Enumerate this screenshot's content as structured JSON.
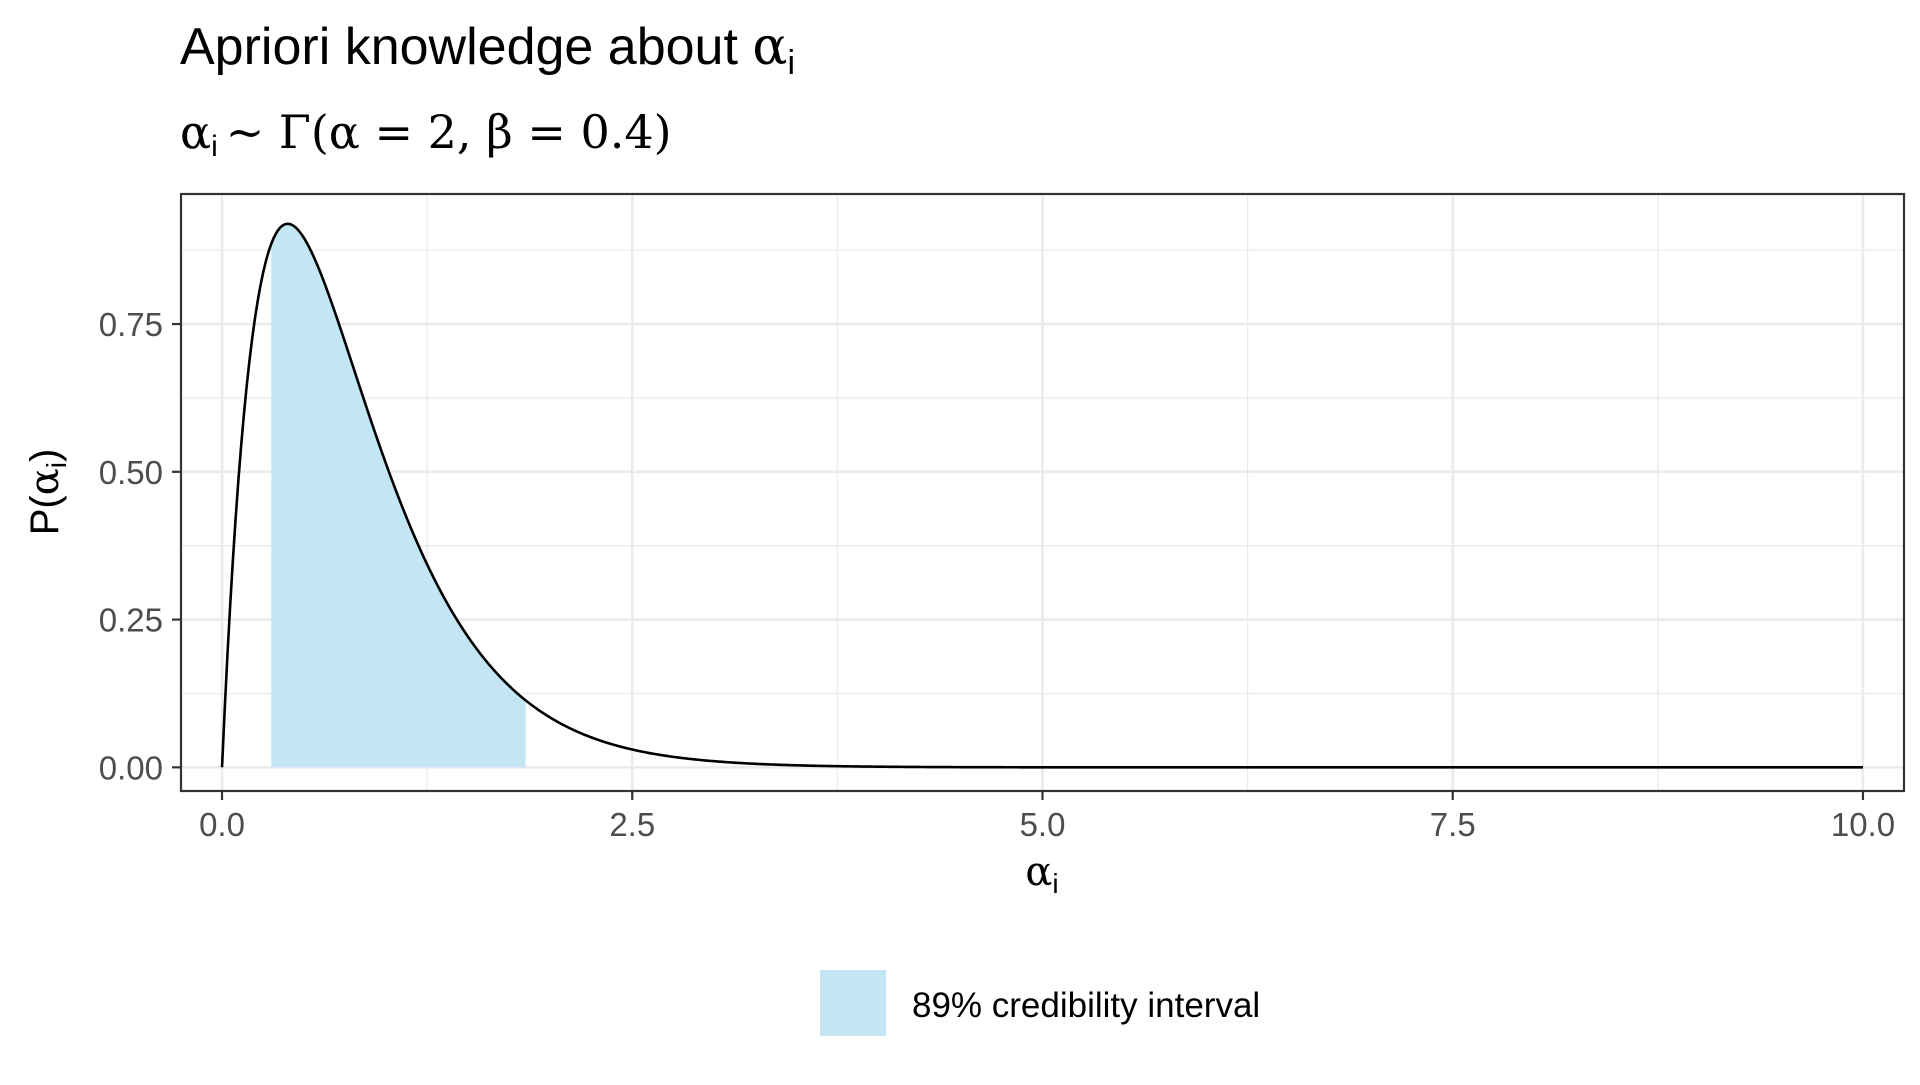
{
  "chart_data": {
    "type": "area",
    "title": {
      "text": "Apriori knowledge about ",
      "symbol": "α",
      "subscript": "i"
    },
    "subtitle": {
      "symbol": "α",
      "subscript": "i",
      "formula": "~ Γ(α = 2, β = 0.4)"
    },
    "xlabel": {
      "symbol": "α",
      "subscript": "i"
    },
    "ylabel": {
      "prefix": "P(",
      "symbol": "α",
      "subscript": "i",
      "suffix": ")"
    },
    "xlim": [
      -0.25,
      10.25
    ],
    "ylim": [
      -0.04,
      0.97
    ],
    "x_ticks": [
      {
        "value": 0,
        "label": "0.0"
      },
      {
        "value": 2.5,
        "label": "2.5"
      },
      {
        "value": 5,
        "label": "5.0"
      },
      {
        "value": 7.5,
        "label": "7.5"
      },
      {
        "value": 10,
        "label": "10.0"
      }
    ],
    "y_ticks": [
      {
        "value": 0,
        "label": "0.00"
      },
      {
        "value": 0.25,
        "label": "0.25"
      },
      {
        "value": 0.5,
        "label": "0.50"
      },
      {
        "value": 0.75,
        "label": "0.75"
      }
    ],
    "grid": true,
    "distribution": {
      "family": "gamma",
      "shape": 2,
      "scale": 0.4
    },
    "x": [
      0,
      0.1,
      0.2,
      0.3,
      0.4,
      0.5,
      0.6,
      0.7,
      0.8,
      0.9,
      1.0,
      1.2,
      1.4,
      1.6,
      1.8,
      2.0,
      2.2,
      2.5,
      2.8,
      3.0,
      3.5,
      4.0,
      4.5,
      5.0,
      6.0,
      7.0,
      8.0,
      9.0,
      10.0
    ],
    "y": [
      0,
      0.487,
      0.758,
      0.886,
      0.92,
      0.895,
      0.837,
      0.761,
      0.677,
      0.593,
      0.513,
      0.374,
      0.264,
      0.181,
      0.121,
      0.08,
      0.052,
      0.027,
      0.013,
      0.009,
      0.003,
      0.001,
      0.0004,
      0.0001,
      0,
      0,
      0,
      0,
      0
    ],
    "credibility_interval": {
      "lower": 0.3,
      "upper": 1.85,
      "level": "89%"
    },
    "legend": {
      "position": "bottom",
      "label": "89% credibility interval"
    },
    "colors": {
      "interval_fill": "#c3e5f4",
      "line": "#000000",
      "panel_border": "#333333",
      "grid": "#ebebeb"
    }
  }
}
